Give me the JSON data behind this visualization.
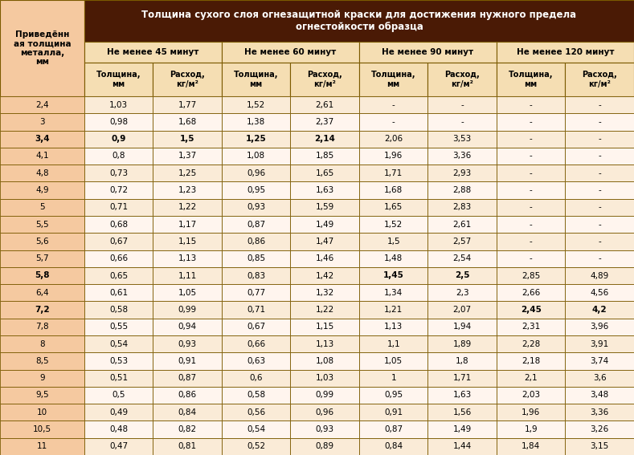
{
  "title": "Толщина сухого слоя огнезащитной краски для достижения нужного предела\nогнестойкости образца",
  "header_col": "Приведённ\nая толщина\nметалла,\nмм",
  "subheaders": [
    "Не менее 45 минут",
    "Не менее 60 минут",
    "Не менее 90 минут",
    "Не менее 120 минут"
  ],
  "col_headers": [
    "Толщина,\nмм",
    "Расход,\nкг/м²",
    "Толщина,\nмм",
    "Расход,\nкг/м²",
    "Толщина,\nмм",
    "Расход,\nкг/м²",
    "Толщина,\nмм",
    "Расход,\nкг/м²"
  ],
  "rows": [
    [
      "2,4",
      "1,03",
      "1,77",
      "1,52",
      "2,61",
      "-",
      "-",
      "-",
      "-"
    ],
    [
      "3",
      "0,98",
      "1,68",
      "1,38",
      "2,37",
      "-",
      "-",
      "-",
      "-"
    ],
    [
      "3,4",
      "0,9",
      "1,5",
      "1,25",
      "2,14",
      "2,06",
      "3,53",
      "-",
      "-"
    ],
    [
      "4,1",
      "0,8",
      "1,37",
      "1,08",
      "1,85",
      "1,96",
      "3,36",
      "-",
      "-"
    ],
    [
      "4,8",
      "0,73",
      "1,25",
      "0,96",
      "1,65",
      "1,71",
      "2,93",
      "-",
      "-"
    ],
    [
      "4,9",
      "0,72",
      "1,23",
      "0,95",
      "1,63",
      "1,68",
      "2,88",
      "-",
      "-"
    ],
    [
      "5",
      "0,71",
      "1,22",
      "0,93",
      "1,59",
      "1,65",
      "2,83",
      "-",
      "-"
    ],
    [
      "5,5",
      "0,68",
      "1,17",
      "0,87",
      "1,49",
      "1,52",
      "2,61",
      "-",
      "-"
    ],
    [
      "5,6",
      "0,67",
      "1,15",
      "0,86",
      "1,47",
      "1,5",
      "2,57",
      "-",
      "-"
    ],
    [
      "5,7",
      "0,66",
      "1,13",
      "0,85",
      "1,46",
      "1,48",
      "2,54",
      "-",
      "-"
    ],
    [
      "5,8",
      "0,65",
      "1,11",
      "0,83",
      "1,42",
      "1,45",
      "2,5",
      "2,85",
      "4,89"
    ],
    [
      "6,4",
      "0,61",
      "1,05",
      "0,77",
      "1,32",
      "1,34",
      "2,3",
      "2,66",
      "4,56"
    ],
    [
      "7,2",
      "0,58",
      "0,99",
      "0,71",
      "1,22",
      "1,21",
      "2,07",
      "2,45",
      "4,2"
    ],
    [
      "7,8",
      "0,55",
      "0,94",
      "0,67",
      "1,15",
      "1,13",
      "1,94",
      "2,31",
      "3,96"
    ],
    [
      "8",
      "0,54",
      "0,93",
      "0,66",
      "1,13",
      "1,1",
      "1,89",
      "2,28",
      "3,91"
    ],
    [
      "8,5",
      "0,53",
      "0,91",
      "0,63",
      "1,08",
      "1,05",
      "1,8",
      "2,18",
      "3,74"
    ],
    [
      "9",
      "0,51",
      "0,87",
      "0,6",
      "1,03",
      "1",
      "1,71",
      "2,1",
      "3,6"
    ],
    [
      "9,5",
      "0,5",
      "0,86",
      "0,58",
      "0,99",
      "0,95",
      "1,63",
      "2,03",
      "3,48"
    ],
    [
      "10",
      "0,49",
      "0,84",
      "0,56",
      "0,96",
      "0,91",
      "1,56",
      "1,96",
      "3,36"
    ],
    [
      "10,5",
      "0,48",
      "0,82",
      "0,54",
      "0,93",
      "0,87",
      "1,49",
      "1,9",
      "3,26"
    ],
    [
      "11",
      "0,47",
      "0,81",
      "0,52",
      "0,89",
      "0,84",
      "1,44",
      "1,84",
      "3,15"
    ]
  ],
  "bold_rows": [
    2,
    10,
    12
  ],
  "bold_cols_per_row": {
    "2": [
      1,
      2,
      3,
      4
    ],
    "10": [
      5,
      6
    ],
    "12": [
      7,
      8
    ]
  },
  "title_bg": "#4A1A05",
  "title_fg": "#FFFFFF",
  "subheader_bg": "#F5DEB3",
  "subheader_fg": "#000000",
  "col_header_bg": "#F5DEB3",
  "col_header_fg": "#000000",
  "row_header_bg": "#F5C9A0",
  "row_header_fg": "#000000",
  "row_even_bg": "#FAEBD7",
  "row_odd_bg": "#FFF5EE",
  "cell_border": "#7B5A00",
  "data_fg": "#000000",
  "fig_bg": "#FFFFFF",
  "fig_w": 7.89,
  "fig_h": 5.67,
  "dpi": 100
}
